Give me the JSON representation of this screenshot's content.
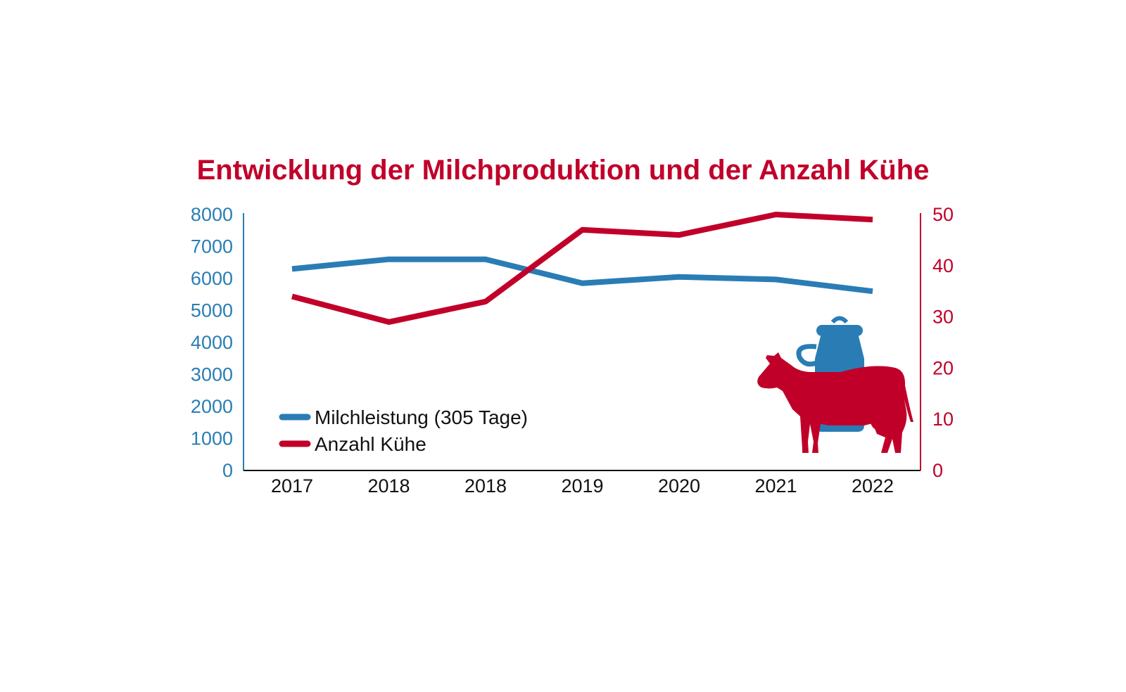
{
  "colors": {
    "milk": "#2a7db4",
    "cows": "#c1002a",
    "text": "#111111",
    "background": "#ffffff"
  },
  "chart_data": {
    "type": "line",
    "title": "Entwicklung der Milchproduktion und der Anzahl Kühe",
    "categories": [
      "2017",
      "2018",
      "2018",
      "2019",
      "2020",
      "2021",
      "2022"
    ],
    "series": [
      {
        "name": "Milchleistung (305 Tage)",
        "axis": "left",
        "color": "#2a7db4",
        "values": [
          6300,
          6600,
          6600,
          5850,
          6050,
          5970,
          5600
        ]
      },
      {
        "name": "Anzahl Kühe",
        "axis": "right",
        "color": "#c1002a",
        "values": [
          34,
          29,
          33,
          47,
          46,
          50,
          49
        ]
      }
    ],
    "y_left": {
      "ylim": [
        0,
        8000
      ],
      "ticks": [
        "0",
        "1000",
        "2000",
        "3000",
        "4000",
        "5000",
        "6000",
        "7000",
        "8000"
      ]
    },
    "y_right": {
      "ylim": [
        0,
        50
      ],
      "ticks": [
        "0",
        "10",
        "20",
        "30",
        "40",
        "50"
      ]
    },
    "grid": false,
    "legend_position": "bottom-left",
    "decorations": [
      "milk-can-icon",
      "cow-icon"
    ]
  }
}
